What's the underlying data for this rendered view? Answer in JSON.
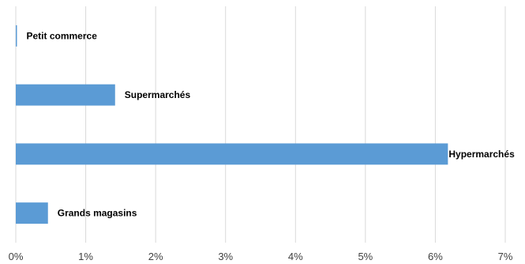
{
  "chart_data": {
    "type": "bar",
    "orientation": "horizontal",
    "categories": [
      "Petit commerce",
      "Supermarchés",
      "Hypermarchés",
      "Grands magasins"
    ],
    "values": [
      0.01,
      1.42,
      6.18,
      0.46
    ],
    "value_unit": "%",
    "xlim": [
      0,
      7
    ],
    "x_ticks": [
      "0%",
      "1%",
      "2%",
      "3%",
      "4%",
      "5%",
      "6%",
      "7%"
    ],
    "data_labels": [
      "Petit commerce",
      "Supermarchés",
      "Hypermarchés",
      "Grands magasins"
    ],
    "grid": "vertical",
    "legend": "none",
    "bar_color": "#5b9bd5"
  }
}
